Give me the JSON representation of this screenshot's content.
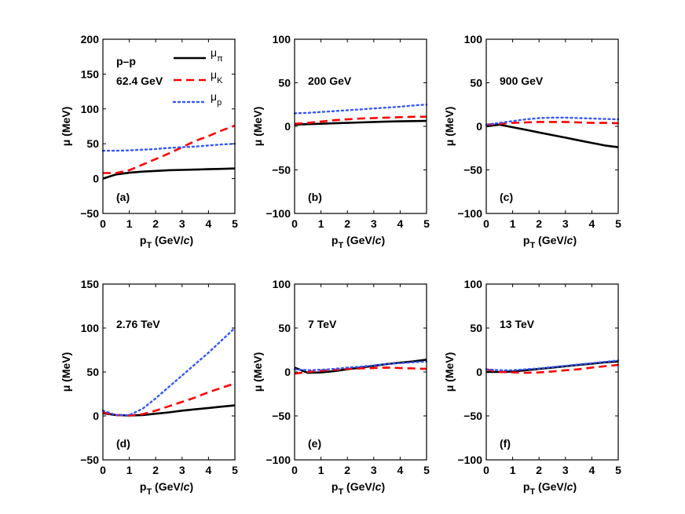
{
  "chart_data": [
    {
      "type": "line",
      "panel_label": "(a)",
      "energy_label": "62.4 GeV",
      "system_label": "p–p",
      "xlabel": "p_T (GeV/c)",
      "ylabel": "μ (MeV)",
      "xlim": [
        0,
        5
      ],
      "ylim": [
        -50,
        200
      ],
      "xticks": [
        "0",
        "1",
        "2",
        "3",
        "4",
        "5"
      ],
      "yticks": [
        "−50",
        "0",
        "50",
        "100",
        "150",
        "200"
      ],
      "x": [
        0,
        0.5,
        1,
        1.5,
        2,
        2.5,
        3,
        3.5,
        4,
        4.5,
        5
      ],
      "series": [
        {
          "name": "μ_π",
          "values": [
            0,
            6,
            8.5,
            10,
            11,
            12,
            12.5,
            13,
            13.5,
            14,
            14.5
          ]
        },
        {
          "name": "μ_K",
          "values": [
            8,
            8,
            12,
            20,
            28,
            36,
            45,
            54,
            61,
            69,
            76
          ]
        },
        {
          "name": "μ_p",
          "values": [
            40,
            40,
            40.5,
            41.5,
            42.5,
            44,
            45,
            46,
            47.5,
            49,
            50
          ]
        }
      ]
    },
    {
      "type": "line",
      "panel_label": "(b)",
      "energy_label": "200 GeV",
      "xlabel": "p_T (GeV/c)",
      "ylabel": "μ (MeV)",
      "xlim": [
        0,
        5
      ],
      "ylim": [
        -100,
        100
      ],
      "xticks": [
        "0",
        "1",
        "2",
        "3",
        "4",
        "5"
      ],
      "yticks": [
        "−100",
        "−50",
        "0",
        "50",
        "100"
      ],
      "x": [
        0,
        0.5,
        1,
        1.5,
        2,
        2.5,
        3,
        3.5,
        4,
        4.5,
        5
      ],
      "series": [
        {
          "name": "μ_π",
          "values": [
            2,
            2.5,
            3,
            3.5,
            4,
            4.5,
            5,
            5.5,
            5.8,
            6,
            6.2
          ]
        },
        {
          "name": "μ_K",
          "values": [
            3,
            4,
            5.5,
            7,
            8,
            9,
            9.5,
            10,
            10.5,
            11,
            11
          ]
        },
        {
          "name": "μ_p",
          "values": [
            15,
            15.5,
            16.5,
            17.5,
            18.5,
            19.5,
            20.5,
            21.5,
            22.5,
            24,
            25
          ]
        }
      ]
    },
    {
      "type": "line",
      "panel_label": "(c)",
      "energy_label": "900 GeV",
      "xlabel": "p_T (GeV/c)",
      "ylabel": "μ (MeV)",
      "xlim": [
        0,
        5
      ],
      "ylim": [
        -100,
        100
      ],
      "xticks": [
        "0",
        "1",
        "2",
        "3",
        "4",
        "5"
      ],
      "yticks": [
        "−100",
        "−50",
        "0",
        "50",
        "100"
      ],
      "x": [
        0,
        0.5,
        1,
        1.5,
        2,
        2.5,
        3,
        3.5,
        4,
        4.5,
        5
      ],
      "series": [
        {
          "name": "μ_π",
          "values": [
            0,
            2,
            -1,
            -4,
            -7,
            -10,
            -13,
            -16,
            -19,
            -22,
            -24
          ]
        },
        {
          "name": "μ_K",
          "values": [
            2,
            3,
            4,
            4.5,
            5,
            5,
            5,
            4.5,
            4,
            4,
            3.5
          ]
        },
        {
          "name": "μ_p",
          "values": [
            2,
            4,
            6,
            8,
            9.5,
            10,
            10,
            9.5,
            9,
            8.5,
            8
          ]
        }
      ]
    },
    {
      "type": "line",
      "panel_label": "(d)",
      "energy_label": "2.76 TeV",
      "xlabel": "p_T (GeV/c)",
      "ylabel": "μ (MeV)",
      "xlim": [
        0,
        5
      ],
      "ylim": [
        -50,
        150
      ],
      "xticks": [
        "0",
        "1",
        "2",
        "3",
        "4",
        "5"
      ],
      "yticks": [
        "−50",
        "0",
        "50",
        "100",
        "150"
      ],
      "x": [
        0,
        0.5,
        1,
        1.5,
        2,
        2.5,
        3,
        3.5,
        4,
        4.5,
        5
      ],
      "series": [
        {
          "name": "μ_π",
          "values": [
            3,
            1,
            0.5,
            1,
            2.5,
            4,
            6,
            7.5,
            9,
            10.5,
            12
          ]
        },
        {
          "name": "μ_K",
          "values": [
            4,
            1,
            0.5,
            2,
            6,
            11,
            16,
            21,
            27,
            32,
            37
          ]
        },
        {
          "name": "μ_p",
          "values": [
            6,
            1,
            1,
            8,
            20,
            33,
            46,
            59,
            72,
            86,
            100
          ]
        }
      ]
    },
    {
      "type": "line",
      "panel_label": "(e)",
      "energy_label": "7 TeV",
      "xlabel": "p_T (GeV/c)",
      "ylabel": "μ (MeV)",
      "xlim": [
        0,
        5
      ],
      "ylim": [
        -100,
        100
      ],
      "xticks": [
        "0",
        "1",
        "2",
        "3",
        "4",
        "5"
      ],
      "yticks": [
        "−100",
        "−50",
        "0",
        "50",
        "100"
      ],
      "x": [
        0,
        0.5,
        1,
        1.5,
        2,
        2.5,
        3,
        3.5,
        4,
        4.5,
        5
      ],
      "series": [
        {
          "name": "μ_π",
          "values": [
            5,
            -1,
            -0.5,
            1,
            3,
            5,
            7,
            9,
            10.5,
            12,
            14
          ]
        },
        {
          "name": "μ_K",
          "values": [
            -2,
            0,
            1.5,
            2.5,
            3.5,
            4,
            4.5,
            5,
            4.5,
            4,
            3.5
          ]
        },
        {
          "name": "μ_p",
          "values": [
            3,
            2,
            2.5,
            3.5,
            5,
            6,
            7.5,
            9,
            10,
            11,
            12
          ]
        }
      ]
    },
    {
      "type": "line",
      "panel_label": "(f)",
      "energy_label": "13 TeV",
      "xlabel": "p_T (GeV/c)",
      "ylabel": "μ (MeV)",
      "xlim": [
        0,
        5
      ],
      "ylim": [
        -100,
        100
      ],
      "xticks": [
        "0",
        "1",
        "2",
        "3",
        "4",
        "5"
      ],
      "yticks": [
        "−100",
        "−50",
        "0",
        "50",
        "100"
      ],
      "x": [
        0,
        0.5,
        1,
        1.5,
        2,
        2.5,
        3,
        3.5,
        4,
        4.5,
        5
      ],
      "series": [
        {
          "name": "μ_π",
          "values": [
            0,
            0,
            0.5,
            2,
            3.5,
            5,
            6.5,
            8,
            9.5,
            11,
            12
          ]
        },
        {
          "name": "μ_K",
          "values": [
            3,
            0,
            -0.5,
            -1,
            -0.5,
            0.5,
            2,
            3,
            5,
            6.5,
            8
          ]
        },
        {
          "name": "μ_p",
          "values": [
            3,
            2,
            2,
            3,
            4,
            5.5,
            7,
            8.5,
            10,
            11.5,
            13
          ]
        }
      ]
    }
  ],
  "legend": {
    "items": [
      {
        "label": "μ",
        "sub": "π",
        "color": "#000000",
        "style": "solid"
      },
      {
        "label": "μ",
        "sub": "K",
        "color": "#ff0000",
        "style": "dashed"
      },
      {
        "label": "μ",
        "sub": "p",
        "color": "#3355ff",
        "style": "dotted"
      }
    ],
    "placement": "top-right of panel (a)"
  },
  "colors": {
    "pi": "#000000",
    "K": "#ff0000",
    "p": "#3355ff"
  }
}
